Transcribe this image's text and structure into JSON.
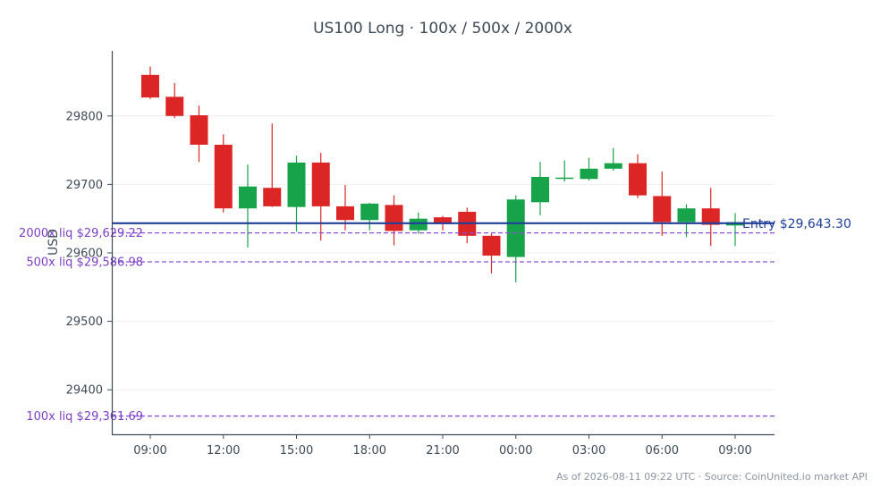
{
  "chart_data": {
    "type": "candlestick",
    "title": "US100 Long · 100x / 500x / 2000x",
    "ylabel": "USD",
    "xlabel": "",
    "ylim": [
      29335,
      29895
    ],
    "grid": "horizontal",
    "x_ticks": [
      "09:00",
      "12:00",
      "15:00",
      "18:00",
      "21:00",
      "00:00",
      "03:00",
      "06:00",
      "09:00"
    ],
    "x_tick_index": [
      0,
      3,
      6,
      9,
      12,
      15,
      18,
      21,
      24
    ],
    "y_ticks": [
      29400,
      29500,
      29600,
      29700,
      29800
    ],
    "y_tick_labels": [
      "29400",
      "29500",
      "29600",
      "29700",
      "29800"
    ],
    "entry": {
      "value": 29643.3,
      "label": "Entry $29,643.30",
      "color": "#1f3f9a"
    },
    "liquidations": [
      {
        "value": 29629.22,
        "label": "2000x liq $29,629.22"
      },
      {
        "value": 29586.98,
        "label": "500x liq $29,586.98"
      },
      {
        "value": 29361.69,
        "label": "100x liq $29,361.69"
      }
    ],
    "colors": {
      "up": "#16a34a",
      "down": "#dc2626",
      "liq": "#8b4fd8",
      "axis": "#3d4a57",
      "grid": "#eeeeee"
    },
    "candles": [
      {
        "o": 29860,
        "h": 29872,
        "l": 29825,
        "c": 29827
      },
      {
        "o": 29828,
        "h": 29848,
        "l": 29797,
        "c": 29800
      },
      {
        "o": 29801,
        "h": 29815,
        "l": 29733,
        "c": 29758
      },
      {
        "o": 29758,
        "h": 29773,
        "l": 29659,
        "c": 29665
      },
      {
        "o": 29665,
        "h": 29729,
        "l": 29608,
        "c": 29697
      },
      {
        "o": 29695,
        "h": 29789,
        "l": 29667,
        "c": 29668
      },
      {
        "o": 29667,
        "h": 29742,
        "l": 29631,
        "c": 29732
      },
      {
        "o": 29732,
        "h": 29746,
        "l": 29618,
        "c": 29668
      },
      {
        "o": 29668,
        "h": 29699,
        "l": 29633,
        "c": 29648
      },
      {
        "o": 29648,
        "h": 29673,
        "l": 29633,
        "c": 29672
      },
      {
        "o": 29670,
        "h": 29684,
        "l": 29611,
        "c": 29632
      },
      {
        "o": 29633,
        "h": 29659,
        "l": 29628,
        "c": 29650
      },
      {
        "o": 29652,
        "h": 29654,
        "l": 29633,
        "c": 29642
      },
      {
        "o": 29660,
        "h": 29666,
        "l": 29614,
        "c": 29625
      },
      {
        "o": 29625,
        "h": 29628,
        "l": 29570,
        "c": 29596
      },
      {
        "o": 29594,
        "h": 29684,
        "l": 29557,
        "c": 29678
      },
      {
        "o": 29674,
        "h": 29733,
        "l": 29655,
        "c": 29711
      },
      {
        "o": 29709,
        "h": 29735,
        "l": 29704,
        "c": 29710
      },
      {
        "o": 29708,
        "h": 29739,
        "l": 29706,
        "c": 29723
      },
      {
        "o": 29723,
        "h": 29753,
        "l": 29720,
        "c": 29731
      },
      {
        "o": 29731,
        "h": 29744,
        "l": 29680,
        "c": 29684
      },
      {
        "o": 29683,
        "h": 29719,
        "l": 29625,
        "c": 29645
      },
      {
        "o": 29645,
        "h": 29671,
        "l": 29623,
        "c": 29665
      },
      {
        "o": 29665,
        "h": 29695,
        "l": 29610,
        "c": 29641
      },
      {
        "o": 29640,
        "h": 29658,
        "l": 29610,
        "c": 29645
      }
    ]
  },
  "footer": "As of 2026-08-11 09:22 UTC · Source: CoinUnited.io market API"
}
